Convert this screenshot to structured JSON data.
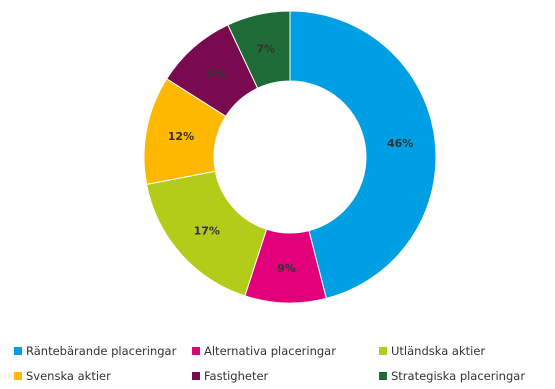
{
  "chart_data": {
    "type": "pie",
    "donut": true,
    "title": "",
    "legend_position": "bottom",
    "slices": [
      {
        "name": "Räntebärande placeringar",
        "value": 46,
        "label": "46%",
        "color": "#009fe3"
      },
      {
        "name": "Alternativa placeringar",
        "value": 9,
        "label": "9%",
        "color": "#e2007a"
      },
      {
        "name": "Utländska aktier",
        "value": 17,
        "label": "17%",
        "color": "#b3cc1a"
      },
      {
        "name": "Svenska aktier",
        "value": 12,
        "label": "12%",
        "color": "#ffb800"
      },
      {
        "name": "Fastigheter",
        "value": 9,
        "label": "9%",
        "color": "#7a0a4f"
      },
      {
        "name": "Strategiska placeringar",
        "value": 7,
        "label": "7%",
        "color": "#1e6b37"
      }
    ]
  }
}
